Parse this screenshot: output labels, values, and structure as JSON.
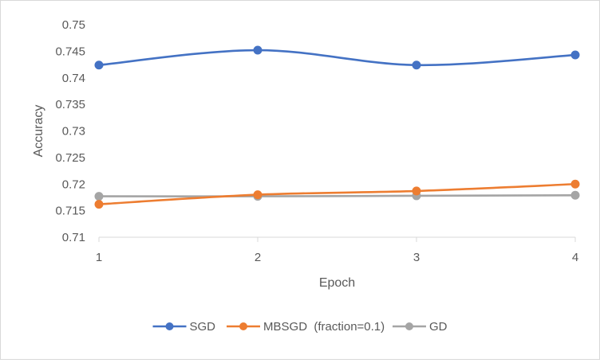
{
  "chart_data": {
    "type": "line",
    "title": "",
    "xlabel": "Epoch",
    "ylabel": "Accuracy",
    "categories": [
      "1",
      "2",
      "3",
      "4"
    ],
    "ylim": [
      0.71,
      0.75
    ],
    "yticks": [
      0.71,
      0.715,
      0.72,
      0.725,
      0.73,
      0.735,
      0.74,
      0.745,
      0.75
    ],
    "ytick_labels": [
      "0.71",
      "0.715",
      "0.72",
      "0.725",
      "0.73",
      "0.735",
      "0.74",
      "0.745",
      "0.75"
    ],
    "grid": false,
    "legend_position": "bottom",
    "smooth_lines": true,
    "series": [
      {
        "name": "SGD",
        "values": [
          0.7424,
          0.7452,
          0.7424,
          0.7443
        ],
        "color": "#4472C4"
      },
      {
        "name": "MBSGD  (fraction=0.1)",
        "values": [
          0.7162,
          0.718,
          0.7187,
          0.72
        ],
        "color": "#ED7D31"
      },
      {
        "name": "GD",
        "values": [
          0.7177,
          0.7177,
          0.7178,
          0.7179
        ],
        "color": "#A5A5A5"
      }
    ],
    "axis_color": "#d9d9d9",
    "text_color": "#595959"
  }
}
